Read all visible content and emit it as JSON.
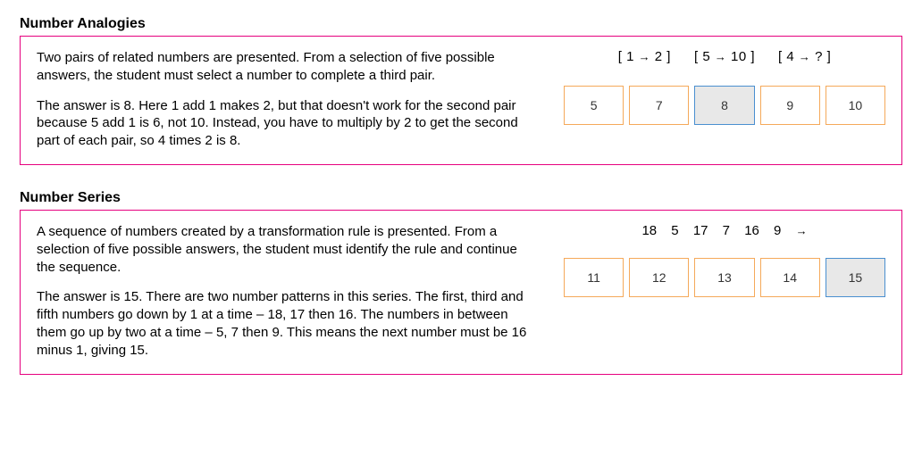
{
  "sections": [
    {
      "title": "Number Analogies",
      "paragraphs": [
        "Two pairs of related numbers are presented. From a selection of five possible answers, the student must select a number to complete a third pair.",
        "The answer is 8. Here 1 add 1 makes 2, but that doesn't work for the second pair because 5 add 1 is 6, not 10. Instead, you have to multiply by 2 to get the second part of each pair, so 4 times 2 is 8."
      ],
      "prompt_type": "pairs",
      "pairs": [
        {
          "a": "1",
          "b": "2"
        },
        {
          "a": "5",
          "b": "10"
        },
        {
          "a": "4",
          "b": "?"
        }
      ],
      "choices": [
        {
          "label": "5",
          "correct": false
        },
        {
          "label": "7",
          "correct": false
        },
        {
          "label": "8",
          "correct": true
        },
        {
          "label": "9",
          "correct": false
        },
        {
          "label": "10",
          "correct": false
        }
      ],
      "colors": {
        "border": "#e6007e",
        "choice_border": "#f5a95a",
        "correct_border": "#4a8fd0",
        "correct_fill": "#e8e8e8"
      }
    },
    {
      "title": "Number Series",
      "paragraphs": [
        "A sequence of numbers created by a transformation rule is presented. From a selection of five possible answers, the student must identify the rule and continue the sequence.",
        "The answer is 15. There are two number patterns in this series. The first, third and fifth numbers go down by 1 at a time – 18, 17 then 16. The numbers in between them go up by two at a time – 5, 7 then 9. This means the next number must be 16 minus 1, giving 15."
      ],
      "prompt_type": "series",
      "series": [
        "18",
        "5",
        "17",
        "7",
        "16",
        "9",
        "→"
      ],
      "choices": [
        {
          "label": "11",
          "correct": false
        },
        {
          "label": "12",
          "correct": false
        },
        {
          "label": "13",
          "correct": false
        },
        {
          "label": "14",
          "correct": false
        },
        {
          "label": "15",
          "correct": true
        }
      ],
      "colors": {
        "border": "#e6007e",
        "choice_border": "#f5a95a",
        "correct_border": "#4a8fd0",
        "correct_fill": "#e8e8e8"
      }
    }
  ],
  "arrow_glyph": "→"
}
